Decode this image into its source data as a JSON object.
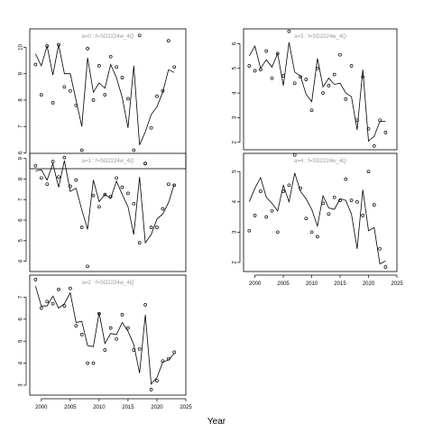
{
  "chart_data": {
    "type": "scatter",
    "xlabel": "Year",
    "x_ticks": [
      2000,
      2005,
      2010,
      2015,
      2020,
      2025
    ],
    "xlim": [
      1998,
      2025
    ],
    "panels": [
      {
        "title": "a=0 : f=SD2224w_4Q",
        "ylim": [
          5.4,
          10.7
        ],
        "y_ticks": [
          6,
          7,
          8,
          9,
          10
        ],
        "years": [
          1999,
          2000,
          2001,
          2002,
          2003,
          2004,
          2005,
          2006,
          2007,
          2008,
          2009,
          2010,
          2011,
          2012,
          2013,
          2014,
          2015,
          2016,
          2017,
          2018,
          2019,
          2020,
          2021,
          2022,
          2023
        ],
        "observed": [
          9.35,
          8.2,
          10.05,
          7.9,
          10.1,
          8.5,
          8.35,
          7.8,
          6.1,
          9.95,
          8.0,
          9.3,
          8.2,
          9.65,
          9.25,
          8.85,
          8.05,
          6.1,
          10.45,
          5.6,
          6.95,
          8.15,
          8.35,
          10.25,
          9.25
        ],
        "fitted": [
          9.75,
          9.3,
          10.05,
          8.95,
          10.1,
          9.0,
          9.0,
          8.0,
          7.0,
          9.6,
          8.3,
          8.65,
          8.45,
          9.35,
          8.85,
          8.1,
          6.95,
          9.3,
          6.3,
          6.8,
          7.45,
          7.75,
          8.3,
          9.15,
          9.05
        ]
      },
      {
        "title": "a=3 : f=SD2224w_4Q",
        "ylim": [
          1.7,
          6.6
        ],
        "y_ticks": [
          2,
          3,
          4,
          5,
          6
        ],
        "years": [
          1999,
          2000,
          2001,
          2002,
          2003,
          2004,
          2005,
          2006,
          2007,
          2008,
          2009,
          2010,
          2011,
          2012,
          2013,
          2014,
          2015,
          2016,
          2017,
          2018,
          2019,
          2020,
          2021,
          2022,
          2023
        ],
        "observed": [
          5.1,
          4.9,
          4.95,
          5.7,
          4.6,
          5.6,
          4.7,
          6.5,
          4.4,
          4.65,
          4.55,
          3.3,
          5.0,
          4.0,
          4.3,
          4.75,
          5.55,
          3.75,
          5.1,
          2.9,
          4.65,
          2.55,
          1.85,
          2.9,
          2.4
        ],
        "fitted": [
          5.5,
          5.9,
          5.0,
          5.35,
          5.05,
          5.6,
          4.3,
          6.05,
          4.85,
          4.7,
          3.95,
          3.65,
          5.4,
          4.25,
          4.6,
          4.35,
          4.4,
          4.0,
          3.85,
          2.5,
          4.95,
          2.05,
          2.25,
          2.85,
          2.85
        ]
      },
      {
        "title": "a=1 : f=SD2224w_4Q",
        "ylim": [
          3.5,
          9.25
        ],
        "y_ticks": [
          4,
          5,
          6,
          7,
          8,
          9
        ],
        "years": [
          1999,
          2000,
          2001,
          2002,
          2003,
          2004,
          2005,
          2006,
          2007,
          2008,
          2009,
          2010,
          2011,
          2012,
          2013,
          2014,
          2015,
          2016,
          2017,
          2018,
          2019,
          2020,
          2021,
          2022,
          2023
        ],
        "observed": [
          8.65,
          8.05,
          7.75,
          8.85,
          8.1,
          9.05,
          7.65,
          7.95,
          5.65,
          3.75,
          7.2,
          6.65,
          7.25,
          7.15,
          8.05,
          7.6,
          7.3,
          6.8,
          4.9,
          8.75,
          5.65,
          5.65,
          6.55,
          7.75,
          7.7
        ],
        "fitted": [
          8.4,
          8.45,
          7.95,
          8.75,
          7.6,
          8.9,
          7.4,
          7.55,
          6.5,
          5.55,
          7.95,
          6.9,
          7.25,
          7.05,
          7.9,
          7.25,
          6.65,
          5.3,
          8.1,
          4.9,
          5.3,
          6.05,
          6.3,
          6.85,
          7.75
        ]
      },
      {
        "title": "a=4 : f=SD2224w_4Q",
        "ylim": [
          1.7,
          5.6
        ],
        "y_ticks": [
          2,
          3,
          4,
          5
        ],
        "years": [
          1999,
          2000,
          2001,
          2002,
          2003,
          2004,
          2005,
          2006,
          2007,
          2008,
          2009,
          2010,
          2011,
          2012,
          2013,
          2014,
          2015,
          2016,
          2017,
          2018,
          2019,
          2020,
          2021,
          2022,
          2023
        ],
        "observed": [
          3.05,
          3.55,
          4.35,
          3.5,
          3.7,
          3.0,
          4.35,
          4.55,
          5.55,
          4.45,
          3.45,
          3.0,
          2.85,
          3.95,
          3.6,
          4.15,
          4.05,
          4.75,
          4.05,
          4.0,
          3.55,
          5.0,
          3.9,
          2.45,
          1.85
        ],
        "fitted": [
          4.0,
          4.45,
          4.8,
          4.15,
          3.95,
          3.7,
          4.55,
          4.0,
          4.95,
          4.35,
          4.1,
          3.75,
          3.2,
          4.2,
          3.8,
          3.75,
          4.1,
          4.05,
          3.6,
          2.45,
          4.4,
          3.05,
          3.15,
          1.95,
          2.05
        ]
      },
      {
        "title": "a=2 : f=SD2224w_4Q",
        "ylim": [
          2.55,
          8.0
        ],
        "y_ticks": [
          3,
          4,
          5,
          6,
          7
        ],
        "years": [
          1999,
          2000,
          2001,
          2002,
          2003,
          2004,
          2005,
          2006,
          2007,
          2008,
          2009,
          2010,
          2011,
          2012,
          2013,
          2014,
          2015,
          2016,
          2017,
          2018,
          2019,
          2020,
          2021,
          2022,
          2023
        ],
        "observed": [
          7.8,
          6.5,
          6.8,
          6.7,
          7.35,
          6.6,
          7.4,
          5.7,
          5.3,
          4.0,
          4.0,
          6.25,
          4.6,
          5.6,
          5.1,
          6.2,
          5.6,
          4.6,
          4.65,
          6.65,
          2.8,
          3.2,
          4.1,
          4.2,
          4.5
        ],
        "fitted": [
          7.5,
          6.6,
          6.6,
          7.05,
          6.5,
          6.7,
          7.2,
          5.85,
          5.9,
          4.8,
          4.75,
          6.3,
          4.9,
          5.35,
          5.3,
          5.85,
          5.45,
          4.85,
          3.55,
          6.2,
          3.05,
          3.35,
          4.05,
          4.15,
          4.45
        ]
      }
    ]
  }
}
